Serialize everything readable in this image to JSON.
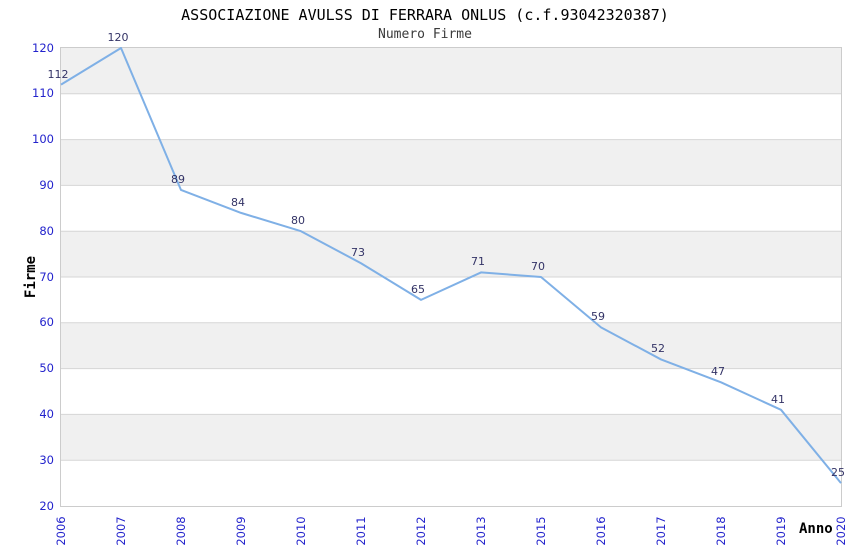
{
  "title": "ASSOCIAZIONE AVULSS DI FERRARA ONLUS (c.f.93042320387)",
  "subtitle": "Numero Firme",
  "chart_data": {
    "type": "line",
    "categories": [
      "2006",
      "2007",
      "2008",
      "2009",
      "2010",
      "2011",
      "2012",
      "2013",
      "2015",
      "2016",
      "2017",
      "2018",
      "2019",
      "2020"
    ],
    "values": [
      112,
      120,
      89,
      84,
      80,
      73,
      65,
      71,
      70,
      59,
      52,
      47,
      41,
      25
    ],
    "title": "ASSOCIAZIONE AVULSS DI FERRARA ONLUS (c.f.93042320387)",
    "subtitle": "Numero Firme",
    "xlabel": "Anno",
    "ylabel": "Firme",
    "ylim": [
      20,
      120
    ],
    "yticks": [
      20,
      30,
      40,
      50,
      60,
      70,
      80,
      90,
      100,
      110,
      120
    ],
    "grid": true,
    "legend": "none",
    "point_labels_visible": true
  },
  "colors": {
    "series_line": "#7fb0e6",
    "band_fill": "#f0f0f0",
    "gridline": "#d6d6d6",
    "plot_border": "#cccccc",
    "tick_label": "#2323cc",
    "point_label": "#333366",
    "title_text": "#000000",
    "subtitle_text": "#3a3a3a",
    "axis_title_text": "#000000"
  }
}
